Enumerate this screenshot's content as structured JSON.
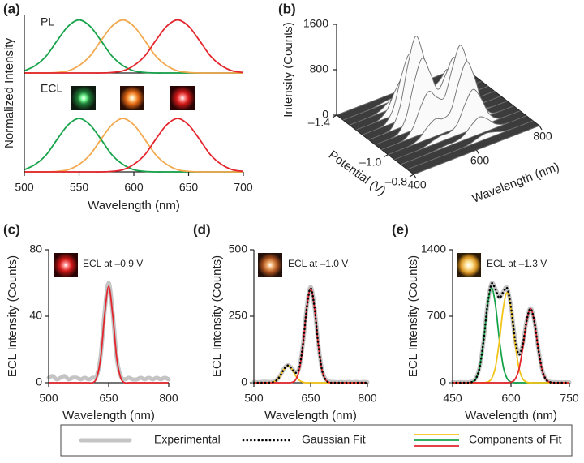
{
  "legend": {
    "entries": [
      {
        "name": "Experimental",
        "color": "#c4c4c4",
        "style": "thick"
      },
      {
        "name": "Gaussian Fit",
        "color": "#000000",
        "style": "dotted"
      },
      {
        "name": "Components of Fit",
        "colors": [
          "#f2c318",
          "#17a34a",
          "#e3262d"
        ],
        "style": "solid"
      }
    ]
  },
  "chart_data": [
    {
      "type": "line",
      "label": "(a)",
      "xlabel": "Wavelength (nm)",
      "ylabel": "Normalized Intensity",
      "xlim": [
        500,
        700
      ],
      "xticks": [
        500,
        550,
        600,
        650,
        700
      ],
      "x": [
        500,
        510,
        520,
        530,
        540,
        550,
        560,
        570,
        580,
        590,
        600,
        610,
        620,
        630,
        640,
        650,
        660,
        670,
        680,
        690,
        700
      ],
      "subplots": [
        {
          "title": "PL",
          "ylim": [
            0,
            1.1
          ],
          "series": [
            {
              "color": "#17a34a",
              "style": "solid",
              "values": [
                0.04,
                0.14,
                0.32,
                0.61,
                0.88,
                1,
                0.88,
                0.61,
                0.32,
                0.14,
                0.04,
                0.01,
                0,
                0,
                0,
                0,
                0,
                0,
                0,
                0,
                0
              ]
            },
            {
              "color": "#f3a84e",
              "style": "solid",
              "values": [
                0,
                0,
                0,
                0.01,
                0.04,
                0.14,
                0.32,
                0.61,
                0.88,
                1,
                0.88,
                0.61,
                0.32,
                0.14,
                0.04,
                0.01,
                0,
                0,
                0,
                0,
                0
              ]
            },
            {
              "color": "#e3262d",
              "style": "solid",
              "values": [
                0,
                0,
                0,
                0,
                0,
                0,
                0,
                0,
                0.01,
                0.04,
                0.14,
                0.32,
                0.61,
                0.88,
                1,
                0.88,
                0.61,
                0.32,
                0.14,
                0.04,
                0.01
              ]
            }
          ]
        },
        {
          "title": "ECL",
          "ylim": [
            0,
            1.7
          ],
          "series": [
            {
              "color": "#17a34a",
              "style": "solid",
              "values": [
                0.04,
                0.14,
                0.32,
                0.61,
                0.88,
                1,
                0.88,
                0.61,
                0.32,
                0.14,
                0.04,
                0.01,
                0,
                0,
                0,
                0,
                0,
                0,
                0,
                0,
                0
              ]
            },
            {
              "color": "#f3a84e",
              "style": "solid",
              "values": [
                0,
                0,
                0,
                0.01,
                0.04,
                0.14,
                0.32,
                0.61,
                0.88,
                1,
                0.88,
                0.61,
                0.32,
                0.14,
                0.04,
                0.01,
                0,
                0,
                0,
                0,
                0
              ]
            },
            {
              "color": "#e3262d",
              "style": "solid",
              "values": [
                0,
                0,
                0,
                0,
                0,
                0,
                0,
                0,
                0.01,
                0.04,
                0.14,
                0.32,
                0.61,
                0.88,
                1,
                0.88,
                0.61,
                0.32,
                0.14,
                0.04,
                0.01
              ]
            }
          ]
        }
      ]
    },
    {
      "type": "surface",
      "label": "(b)",
      "zlabel": "Intensity (Counts)",
      "xlabel": "Potential (V)",
      "ylabel": "Wavelength (nm)",
      "zlim": [
        0,
        1600
      ],
      "zticks": [
        0,
        800,
        1600
      ],
      "xlim": [
        -1.4,
        -0.8
      ],
      "xticks": [
        {
          "value": -1.4,
          "label": "–1.4"
        },
        {
          "value": -1.0,
          "label": "–1.0"
        },
        {
          "value": -0.8,
          "label": "–0.8"
        }
      ],
      "ylim": [
        400,
        800
      ],
      "yticks": [
        400,
        600,
        800
      ],
      "potential": [
        -1.4,
        -1.35,
        -1.3,
        -1.25,
        -1.2,
        -1.15,
        -1.1,
        -1.05,
        -1.0,
        -0.95,
        -0.9,
        -0.85,
        -0.8
      ],
      "wavelength": [
        400,
        425,
        450,
        475,
        500,
        525,
        550,
        575,
        600,
        625,
        650,
        675,
        700,
        725,
        750,
        775,
        800
      ],
      "values": [
        [
          0,
          0,
          0,
          0,
          0,
          0,
          0,
          0,
          0,
          0,
          0,
          0,
          0,
          0,
          0,
          0,
          0
        ],
        [
          0,
          0,
          0,
          2,
          12,
          35,
          50,
          35,
          12,
          2,
          0,
          0,
          0,
          0,
          0,
          0,
          0
        ],
        [
          0,
          0,
          1,
          9,
          50,
          141,
          200,
          144,
          62,
          44,
          51,
          35,
          12,
          2,
          0,
          0,
          0
        ],
        [
          0,
          0,
          2,
          26,
          149,
          424,
          601,
          431,
          187,
          132,
          152,
          106,
          37,
          7,
          1,
          0,
          0
        ],
        [
          0,
          0,
          4,
          48,
          274,
          778,
          1102,
          795,
          373,
          331,
          404,
          283,
          100,
          18,
          2,
          0,
          0
        ],
        [
          0,
          0,
          6,
          66,
          374,
          1061,
          1503,
          1092,
          548,
          561,
          706,
          495,
          174,
          31,
          3,
          0,
          0
        ],
        [
          0,
          0,
          5,
          53,
          299,
          848,
          1204,
          892,
          548,
          760,
          1005,
          707,
          249,
          44,
          4,
          0,
          0
        ],
        [
          0,
          0,
          3,
          31,
          174,
          495,
          705,
          552,
          498,
          950,
          1303,
          919,
          324,
          57,
          5,
          0,
          0
        ],
        [
          0,
          0,
          1,
          13,
          75,
          212,
          304,
          260,
          349,
          791,
          1101,
          778,
          274,
          48,
          4,
          0,
          0
        ],
        [
          0,
          0,
          0,
          4,
          25,
          71,
          103,
          102,
          199,
          499,
          700,
          495,
          174,
          31,
          3,
          0,
          0
        ],
        [
          0,
          0,
          0,
          1,
          7,
          21,
          31,
          34,
          82,
          213,
          300,
          212,
          75,
          13,
          1,
          0,
          0
        ],
        [
          0,
          0,
          0,
          0,
          0,
          0,
          0,
          4,
          25,
          71,
          100,
          71,
          25,
          4,
          0,
          0,
          0
        ],
        [
          0,
          0,
          0,
          0,
          0,
          0,
          0,
          0,
          0,
          0,
          0,
          0,
          0,
          0,
          0,
          0,
          0
        ]
      ]
    },
    {
      "type": "line",
      "label": "(c)",
      "xlabel": "Wavelength (nm)",
      "ylabel": "ECL Intensity (Counts)",
      "annotation": "ECL at –0.9 V",
      "xlim": [
        500,
        800
      ],
      "xticks": [
        500,
        650,
        800
      ],
      "ylim": [
        0,
        80
      ],
      "yticks": [
        0,
        40,
        80
      ],
      "x": [
        500,
        510,
        520,
        530,
        540,
        550,
        560,
        570,
        580,
        590,
        600,
        610,
        620,
        630,
        640,
        650,
        660,
        670,
        680,
        690,
        700,
        710,
        720,
        730,
        740,
        750,
        760,
        770,
        780,
        790,
        800
      ],
      "series": [
        {
          "color": "#c4c4c4",
          "style": "thick",
          "values": [
            3,
            4,
            2,
            3,
            4,
            2,
            3,
            3,
            2,
            3,
            2,
            3,
            4,
            16,
            43,
            60,
            42,
            15,
            4,
            2,
            3,
            2,
            2,
            3,
            2,
            3,
            2,
            3,
            2,
            3,
            2
          ]
        },
        {
          "color": "#e3262d",
          "style": "solid",
          "values": [
            0,
            0,
            0,
            0,
            0,
            0,
            0,
            0,
            0,
            0,
            0,
            0,
            3,
            15,
            41,
            58,
            41,
            15,
            3,
            0,
            0,
            0,
            0,
            0,
            0,
            0,
            0,
            0,
            0,
            0,
            0
          ]
        }
      ]
    },
    {
      "type": "line",
      "label": "(d)",
      "xlabel": "Wavelength (nm)",
      "ylabel": "ECL Intensity (Counts)",
      "annotation": "ECL at –1.0 V",
      "xlim": [
        500,
        800
      ],
      "xticks": [
        500,
        650,
        800
      ],
      "ylim": [
        0,
        500
      ],
      "yticks": [
        0,
        250,
        500
      ],
      "x": [
        500,
        510,
        520,
        530,
        540,
        550,
        560,
        570,
        580,
        590,
        600,
        610,
        620,
        630,
        640,
        650,
        660,
        670,
        680,
        690,
        700,
        710,
        720,
        730,
        740,
        750,
        760,
        770,
        780,
        790,
        800
      ],
      "series": [
        {
          "color": "#c4c4c4",
          "style": "thick",
          "values": [
            3,
            2,
            3,
            4,
            3,
            4,
            10,
            28,
            54,
            66,
            55,
            40,
            58,
            150,
            288,
            360,
            286,
            148,
            50,
            12,
            4,
            3,
            2,
            3,
            2,
            3,
            2,
            3,
            2,
            3,
            2
          ]
        },
        {
          "color": "#f2c318",
          "style": "solid",
          "values": [
            0,
            0,
            0,
            0,
            0,
            2,
            9,
            27,
            52,
            65,
            52,
            27,
            9,
            2,
            0,
            0,
            0,
            0,
            0,
            0,
            0,
            0,
            0,
            0,
            0,
            0,
            0,
            0,
            0,
            0,
            0
          ]
        },
        {
          "color": "#e3262d",
          "style": "solid",
          "values": [
            0,
            0,
            0,
            0,
            0,
            0,
            0,
            0,
            0,
            0,
            1,
            10,
            48,
            146,
            284,
            355,
            284,
            146,
            48,
            10,
            1,
            0,
            0,
            0,
            0,
            0,
            0,
            0,
            0,
            0,
            0
          ]
        },
        {
          "color": "#000000",
          "style": "dotted",
          "values": [
            0,
            0,
            0,
            0,
            0,
            2,
            9,
            27,
            52,
            65,
            53,
            37,
            57,
            148,
            284,
            355,
            284,
            146,
            48,
            10,
            1,
            0,
            0,
            0,
            0,
            0,
            0,
            0,
            0,
            0,
            0
          ]
        }
      ]
    },
    {
      "type": "line",
      "label": "(e)",
      "xlabel": "Wavelength (nm)",
      "ylabel": "ECL Intensity (Counts)",
      "annotation": "ECL at –1.3 V",
      "xlim": [
        450,
        750
      ],
      "xticks": [
        450,
        600,
        750
      ],
      "ylim": [
        0,
        1400
      ],
      "yticks": [
        0,
        700,
        1400
      ],
      "x": [
        450,
        460,
        470,
        480,
        490,
        500,
        510,
        520,
        530,
        540,
        550,
        560,
        570,
        580,
        590,
        600,
        610,
        620,
        630,
        640,
        650,
        660,
        670,
        680,
        690,
        700,
        710,
        720,
        730,
        740,
        750
      ],
      "series": [
        {
          "color": "#c4c4c4",
          "style": "thick",
          "values": [
            5,
            4,
            6,
            5,
            6,
            14,
            50,
            178,
            462,
            835,
            1045,
            990,
            898,
            958,
            998,
            800,
            472,
            302,
            404,
            652,
            784,
            646,
            360,
            138,
            38,
            10,
            6,
            5,
            4,
            5,
            4
          ]
        },
        {
          "color": "#17a34a",
          "style": "solid",
          "values": [
            0,
            0,
            0,
            0,
            0,
            8,
            44,
            172,
            458,
            822,
            1000,
            822,
            458,
            172,
            44,
            8,
            0,
            0,
            0,
            0,
            0,
            0,
            0,
            0,
            0,
            0,
            0,
            0,
            0,
            0,
            0
          ]
        },
        {
          "color": "#f2c318",
          "style": "solid",
          "values": [
            0,
            0,
            0,
            0,
            0,
            0,
            0,
            0,
            0,
            7,
            42,
            163,
            435,
            781,
            950,
            781,
            435,
            163,
            42,
            7,
            0,
            0,
            0,
            0,
            0,
            0,
            0,
            0,
            0,
            0,
            0
          ]
        },
        {
          "color": "#e3262d",
          "style": "solid",
          "values": [
            0,
            0,
            0,
            0,
            0,
            0,
            0,
            0,
            0,
            0,
            0,
            0,
            0,
            0,
            0,
            6,
            34,
            134,
            357,
            641,
            780,
            641,
            357,
            134,
            34,
            6,
            0,
            0,
            0,
            0,
            0
          ]
        },
        {
          "color": "#000000",
          "style": "dotted",
          "values": [
            0,
            0,
            0,
            0,
            0,
            8,
            44,
            172,
            458,
            829,
            1042,
            985,
            893,
            953,
            994,
            795,
            469,
            297,
            399,
            648,
            780,
            641,
            357,
            134,
            34,
            6,
            0,
            0,
            0,
            0,
            0
          ]
        }
      ]
    }
  ]
}
